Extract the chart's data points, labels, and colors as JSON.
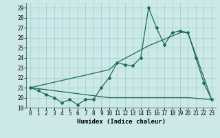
{
  "xlabel": "Humidex (Indice chaleur)",
  "xlim": [
    -0.5,
    23.5
  ],
  "ylim": [
    19,
    29.5
  ],
  "yticks": [
    19,
    20,
    21,
    22,
    23,
    24,
    25,
    26,
    27,
    28,
    29
  ],
  "xticks": [
    0,
    1,
    2,
    3,
    4,
    5,
    6,
    7,
    8,
    9,
    10,
    11,
    12,
    13,
    14,
    15,
    16,
    17,
    18,
    19,
    20,
    21,
    22,
    23
  ],
  "bg_color": "#cce8e8",
  "line_color": "#1a6b5a",
  "grid_color": "#aad4d4",
  "line1_x": [
    0,
    1,
    2,
    3,
    4,
    5,
    6,
    7,
    8,
    9,
    10,
    11,
    12,
    13,
    14,
    15,
    16,
    17,
    18,
    19,
    20,
    21,
    22,
    23
  ],
  "line1_y": [
    21.0,
    20.7,
    20.3,
    20.0,
    19.5,
    19.8,
    19.3,
    19.8,
    19.8,
    21.0,
    22.0,
    23.5,
    23.3,
    23.2,
    24.0,
    29.0,
    27.0,
    25.3,
    26.5,
    26.7,
    26.5,
    24.0,
    21.5,
    19.8
  ],
  "line2_x": [
    0,
    10,
    11,
    15,
    19,
    20,
    23
  ],
  "line2_y": [
    21.0,
    22.8,
    23.5,
    25.2,
    26.5,
    26.5,
    19.8
  ],
  "line3_x": [
    0,
    10,
    20,
    23
  ],
  "line3_y": [
    21.0,
    20.0,
    20.0,
    19.8
  ]
}
